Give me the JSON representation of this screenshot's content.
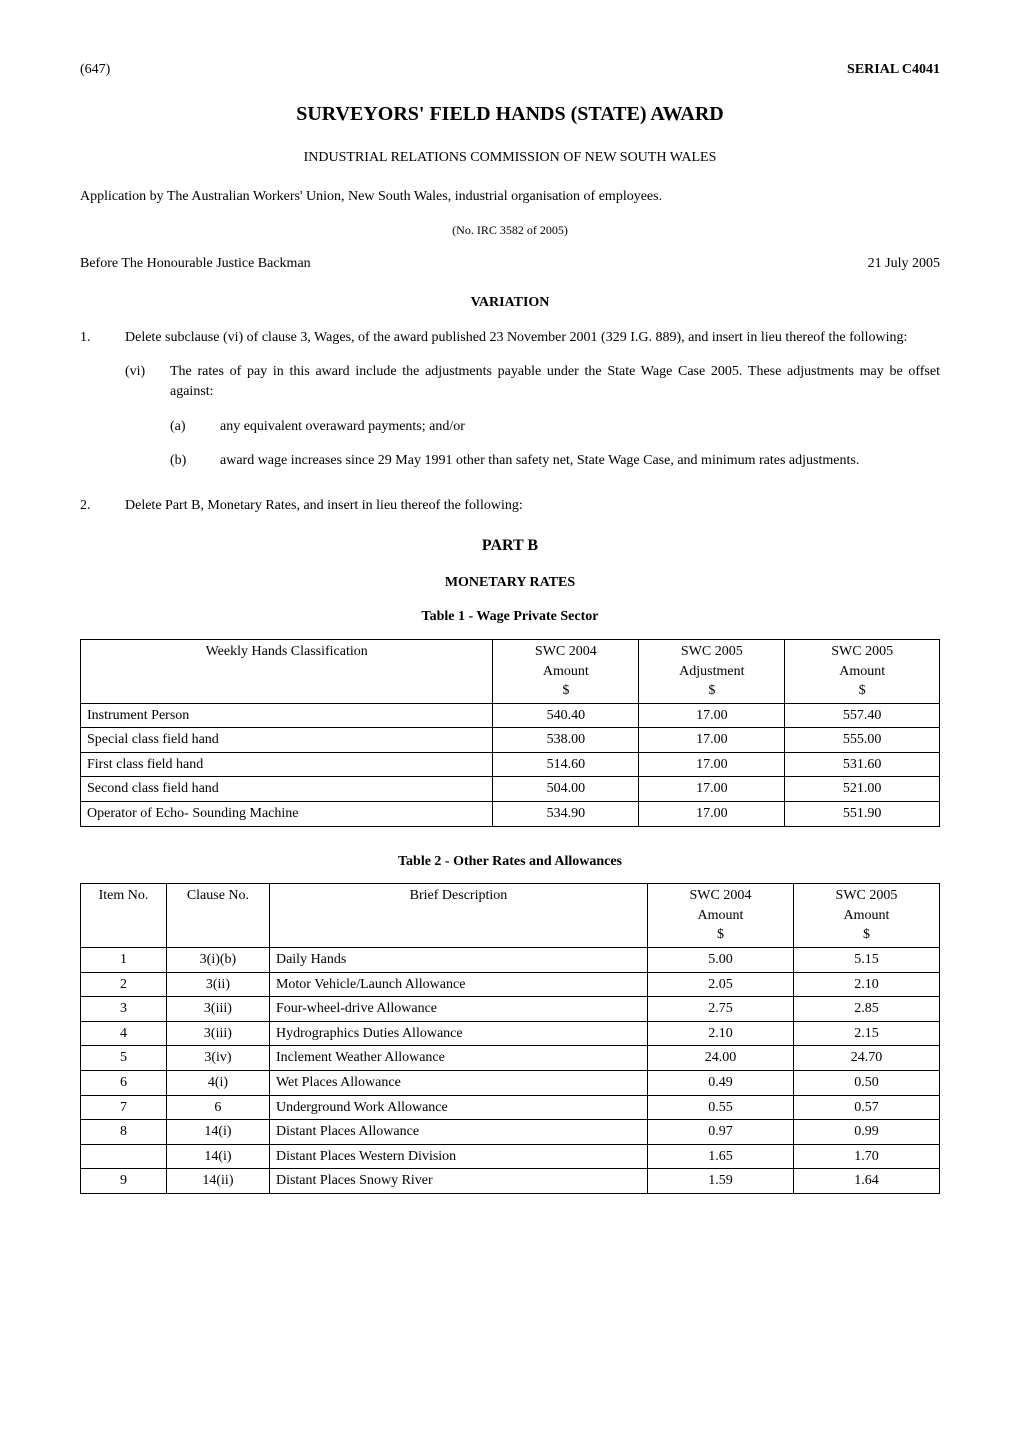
{
  "header": {
    "page_ref": "(647)",
    "serial": "SERIAL C4041"
  },
  "title": "SURVEYORS' FIELD HANDS (STATE) AWARD",
  "subtitle": "INDUSTRIAL RELATIONS COMMISSION OF NEW SOUTH WALES",
  "application": "Application by The Australian Workers' Union, New South Wales, industrial organisation of employees.",
  "case_no": "(No. IRC 3582 of 2005)",
  "before": {
    "text": "Before The Honourable Justice Backman",
    "date": "21 July 2005"
  },
  "variation_heading": "VARIATION",
  "paragraphs": {
    "para1": {
      "num": "1.",
      "text": "Delete subclause (vi) of clause 3, Wages, of the award published 23 November 2001 (329 I.G. 889), and insert in lieu thereof the following:",
      "sub_vi": {
        "num": "(vi)",
        "text": "The rates of pay in this award include the adjustments payable under the State Wage Case 2005. These adjustments may be offset against:",
        "sub_a": {
          "num": "(a)",
          "text": "any equivalent overaward payments; and/or"
        },
        "sub_b": {
          "num": "(b)",
          "text": "award wage increases since 29 May 1991 other than safety net, State Wage Case, and minimum rates adjustments."
        }
      }
    },
    "para2": {
      "num": "2.",
      "text": "Delete Part B, Monetary Rates, and insert in lieu thereof the following:"
    }
  },
  "part_heading": "PART B",
  "monetary_heading": "MONETARY RATES",
  "table1": {
    "caption": "Table 1 - Wage Private Sector",
    "headers": {
      "col1": "Weekly Hands Classification",
      "col2_l1": "SWC 2004",
      "col2_l2": "Amount",
      "col2_l3": "$",
      "col3_l1": "SWC 2005",
      "col3_l2": "Adjustment",
      "col3_l3": "$",
      "col4_l1": "SWC 2005",
      "col4_l2": "Amount",
      "col4_l3": "$"
    },
    "rows": [
      {
        "c1": "Instrument Person",
        "c2": "540.40",
        "c3": "17.00",
        "c4": "557.40"
      },
      {
        "c1": "Special class field hand",
        "c2": "538.00",
        "c3": "17.00",
        "c4": "555.00"
      },
      {
        "c1": "First class field hand",
        "c2": "514.60",
        "c3": "17.00",
        "c4": "531.60"
      },
      {
        "c1": "Second class field hand",
        "c2": "504.00",
        "c3": "17.00",
        "c4": "521.00"
      },
      {
        "c1": "Operator of Echo- Sounding Machine",
        "c2": "534.90",
        "c3": "17.00",
        "c4": "551.90"
      }
    ]
  },
  "table2": {
    "caption": "Table 2 - Other Rates and Allowances",
    "headers": {
      "col1": "Item No.",
      "col2": "Clause No.",
      "col3": "Brief Description",
      "col4_l1": "SWC 2004",
      "col4_l2": "Amount",
      "col4_l3": "$",
      "col5_l1": "SWC 2005",
      "col5_l2": "Amount",
      "col5_l3": "$"
    },
    "rows": [
      {
        "c1": "1",
        "c2": "3(i)(b)",
        "c3": "Daily Hands",
        "c4": "5.00",
        "c5": "5.15"
      },
      {
        "c1": "2",
        "c2": "3(ii)",
        "c3": "Motor Vehicle/Launch Allowance",
        "c4": "2.05",
        "c5": "2.10"
      },
      {
        "c1": "3",
        "c2": "3(iii)",
        "c3": "Four-wheel-drive Allowance",
        "c4": "2.75",
        "c5": "2.85"
      },
      {
        "c1": "4",
        "c2": "3(iii)",
        "c3": "Hydrographics Duties Allowance",
        "c4": "2.10",
        "c5": "2.15"
      },
      {
        "c1": "5",
        "c2": "3(iv)",
        "c3": "Inclement Weather Allowance",
        "c4": "24.00",
        "c5": "24.70"
      },
      {
        "c1": "6",
        "c2": "4(i)",
        "c3": "Wet Places Allowance",
        "c4": "0.49",
        "c5": "0.50"
      },
      {
        "c1": "7",
        "c2": "6",
        "c3": "Underground Work Allowance",
        "c4": "0.55",
        "c5": "0.57"
      },
      {
        "c1": "8",
        "c2": "14(i)",
        "c3": "Distant Places Allowance",
        "c4": "0.97",
        "c5": "0.99"
      },
      {
        "c1": "",
        "c2": "14(i)",
        "c3": "Distant Places Western Division",
        "c4": "1.65",
        "c5": "1.70"
      },
      {
        "c1": "9",
        "c2": "14(ii)",
        "c3": "Distant Places Snowy River",
        "c4": "1.59",
        "c5": "1.64"
      }
    ]
  }
}
